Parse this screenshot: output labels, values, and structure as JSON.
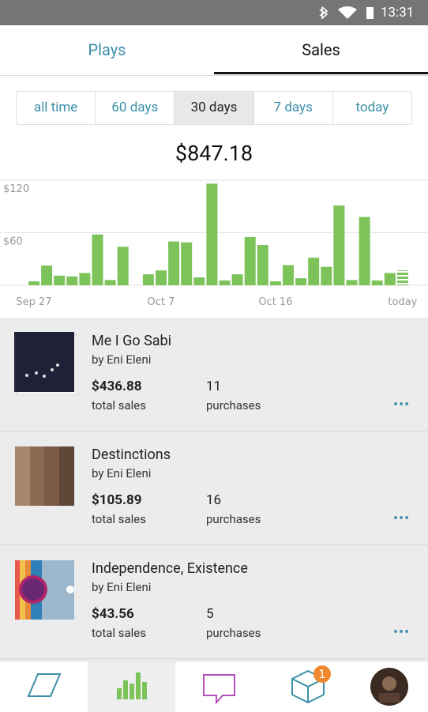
{
  "status_bar": {
    "time": "13:31"
  },
  "tabs": [
    "Plays",
    "Sales"
  ],
  "active_tab": 1,
  "ranges": [
    "all time",
    "60 days",
    "30 days",
    "7 days",
    "today"
  ],
  "active_range": 2,
  "total": "$847.18",
  "chart_data": {
    "type": "bar",
    "color": "#7cc35a",
    "categories": [
      "Sep 27",
      null,
      null,
      null,
      null,
      null,
      null,
      null,
      null,
      null,
      "Oct 7",
      null,
      null,
      null,
      null,
      null,
      null,
      null,
      null,
      "Oct 16",
      null,
      null,
      null,
      null,
      null,
      null,
      null,
      null,
      null,
      "today"
    ],
    "values": [
      4.5,
      22.5,
      11,
      10,
      14,
      58,
      6,
      44,
      0,
      12.5,
      17,
      50,
      49,
      9,
      116,
      5.5,
      12.5,
      55,
      46,
      4.5,
      23,
      8,
      31.5,
      21,
      91,
      6,
      78,
      5.5,
      14,
      17
    ],
    "ylim": [
      0,
      120
    ],
    "yticks": [
      {
        "value": 60,
        "label": "$60"
      },
      {
        "value": 120,
        "label": "$120"
      }
    ],
    "grid": true
  },
  "items": [
    {
      "title": "Me I Go Sabi",
      "artist": "by Eni Eleni",
      "sales": "$436.88",
      "sales_label": "total sales",
      "purchases": "11",
      "purchases_label": "purchases"
    },
    {
      "title": "Destinctions",
      "artist": "by Eni Eleni",
      "sales": "$105.89",
      "sales_label": "total sales",
      "purchases": "16",
      "purchases_label": "purchases"
    },
    {
      "title": "Independence, Existence",
      "artist": "by Eni Eleni",
      "sales": "$43.56",
      "sales_label": "total sales",
      "purchases": "5",
      "purchases_label": "purchases"
    }
  ],
  "badge": "1"
}
